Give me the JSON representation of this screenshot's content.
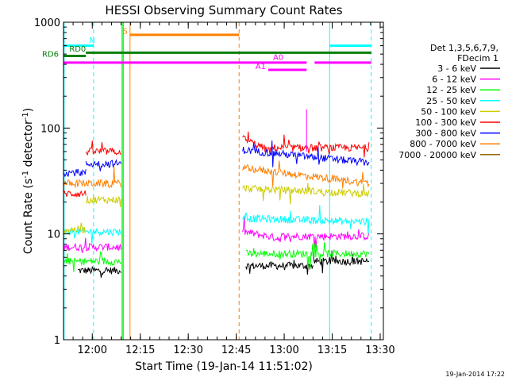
{
  "chart_data": {
    "type": "line",
    "title": "HESSI Observing Summary Count Rates",
    "xlabel": "Start Time (19-Jan-14 11:51:02)",
    "ylabel_main": "Count Rate (s",
    "ylabel_sup1": "-1",
    "ylabel_mid": " detector",
    "ylabel_sup2": "-1",
    "ylabel_end": ")",
    "yscale": "log",
    "ylim": [
      1,
      1000
    ],
    "xlim_minutes": [
      0,
      100
    ],
    "x_ticks": [
      {
        "t": 9,
        "label": "12:00"
      },
      {
        "t": 24,
        "label": "12:15"
      },
      {
        "t": 39,
        "label": "12:30"
      },
      {
        "t": 54,
        "label": "12:45"
      },
      {
        "t": 69,
        "label": "13:00"
      },
      {
        "t": 84,
        "label": "13:15"
      },
      {
        "t": 99,
        "label": "13:30"
      }
    ],
    "y_ticks": [
      {
        "v": 1,
        "label": "1"
      },
      {
        "v": 10,
        "label": "10"
      },
      {
        "v": 100,
        "label": "100"
      },
      {
        "v": 1000,
        "label": "1000"
      }
    ],
    "legend_header": [
      "Det 1,3,5,6,7,9,",
      "FDecim 1"
    ],
    "series": [
      {
        "name": "3 - 6 keV",
        "color": "#000000",
        "segments": [
          {
            "x": [
              4.5,
              18
            ],
            "y": [
              4.5,
              4.5
            ]
          },
          {
            "x": [
              57,
              78
            ],
            "y": [
              5,
              5
            ]
          },
          {
            "x": [
              78,
              95.5
            ],
            "y": [
              5.5,
              5.5
            ]
          }
        ]
      },
      {
        "name": "6 - 12 keV",
        "color": "#ff00ff",
        "segments": [
          {
            "x": [
              0,
              18
            ],
            "y": [
              7.5,
              7.5
            ]
          },
          {
            "x": [
              56,
              68
            ],
            "y": [
              10.5,
              9
            ]
          },
          {
            "x": [
              68,
              95.5
            ],
            "y": [
              9.5,
              9.5
            ]
          }
        ]
      },
      {
        "name": "12 - 25 keV",
        "color": "#00ff00",
        "segments": [
          {
            "x": [
              0,
              18
            ],
            "y": [
              5.5,
              5.5
            ]
          },
          {
            "x": [
              57,
              95.5
            ],
            "y": [
              6.5,
              6.5
            ]
          }
        ]
      },
      {
        "name": "25 - 50 keV",
        "color": "#00ffff",
        "segments": [
          {
            "x": [
              0,
              18
            ],
            "y": [
              10.5,
              10.5
            ]
          },
          {
            "x": [
              56,
              95.5
            ],
            "y": [
              14,
              13
            ]
          }
        ]
      },
      {
        "name": "50 - 100 keV",
        "color": "#cccc00",
        "segments": [
          {
            "x": [
              0,
              7
            ],
            "y": [
              11,
              11
            ]
          },
          {
            "x": [
              7,
              18
            ],
            "y": [
              21,
              21
            ]
          },
          {
            "x": [
              56,
              95.5
            ],
            "y": [
              27,
              24
            ]
          }
        ]
      },
      {
        "name": "100 - 300 keV",
        "color": "#ff0000",
        "segments": [
          {
            "x": [
              0,
              7
            ],
            "y": [
              24,
              24
            ]
          },
          {
            "x": [
              7,
              18
            ],
            "y": [
              60,
              60
            ]
          },
          {
            "x": [
              56,
              65
            ],
            "y": [
              80,
              60
            ]
          },
          {
            "x": [
              65,
              95.5
            ],
            "y": [
              65,
              65
            ]
          }
        ]
      },
      {
        "name": "300 - 800 keV",
        "color": "#0000ff",
        "segments": [
          {
            "x": [
              0,
              7
            ],
            "y": [
              38,
              38
            ]
          },
          {
            "x": [
              7,
              18
            ],
            "y": [
              46,
              46
            ]
          },
          {
            "x": [
              56,
              95.5
            ],
            "y": [
              62,
              47
            ]
          }
        ]
      },
      {
        "name": "800 - 7000 keV",
        "color": "#ff8000",
        "segments": [
          {
            "x": [
              0,
              18
            ],
            "y": [
              30,
              30
            ]
          },
          {
            "x": [
              56,
              95.5
            ],
            "y": [
              42,
              30
            ]
          }
        ]
      },
      {
        "name": "7000 - 20000 keV",
        "color": "#996600",
        "segments": []
      }
    ],
    "vlines": [
      {
        "t": 0.2,
        "color": "#00ffff",
        "dash": false
      },
      {
        "t": 18.4,
        "color": "#00ff00",
        "dash": false
      },
      {
        "t": 18.2,
        "color": "#00ffff",
        "dash": false
      },
      {
        "t": 20.8,
        "color": "#ff8000",
        "dash": false
      },
      {
        "t": 18.7,
        "color": "#ff8000",
        "dash": false
      },
      {
        "t": 83.2,
        "color": "#00ffff",
        "dash": false
      },
      {
        "t": 9.4,
        "color": "#00ffff",
        "dash": true
      },
      {
        "t": 54.9,
        "color": "#ff8000",
        "dash": true
      },
      {
        "t": 96.2,
        "color": "#00ffff",
        "dash": true
      }
    ],
    "flag_bars": [
      {
        "x": [
          0,
          9.4
        ],
        "y": 600,
        "color": "#00ffff",
        "label": "N",
        "label_x": 8,
        "label_y": 640
      },
      {
        "x": [
          83.2,
          96.2
        ],
        "y": 600,
        "color": "#00ffff",
        "label": "",
        "label_x": 0,
        "label_y": 0
      },
      {
        "x": [
          20.8,
          54.9
        ],
        "y": 760,
        "color": "#ff8000",
        "label": "S",
        "label_x": 18.5,
        "label_y": 780
      },
      {
        "x": [
          7,
          96.2
        ],
        "y": 515,
        "color": "#007f00",
        "label": "RD0",
        "label_x": 1.8,
        "label_y": 530
      },
      {
        "x": [
          0,
          7
        ],
        "y": 480,
        "color": "#007f00",
        "label": "",
        "label_x": 0,
        "label_y": 0
      },
      {
        "x": [
          0,
          76
        ],
        "y": 415,
        "color": "#ff00ff",
        "label": "",
        "label_x": 0,
        "label_y": 0
      },
      {
        "x": [
          78.5,
          96.2
        ],
        "y": 415,
        "color": "#ff00ff",
        "label": "A0",
        "label_x": 65.5,
        "label_y": 440
      },
      {
        "x": [
          64,
          76
        ],
        "y": 355,
        "color": "#ff00ff",
        "label": "A1",
        "label_x": 60,
        "label_y": 360
      }
    ],
    "rd6_label": "RD6",
    "timestamp": "19-Jan-2014 17:22"
  }
}
